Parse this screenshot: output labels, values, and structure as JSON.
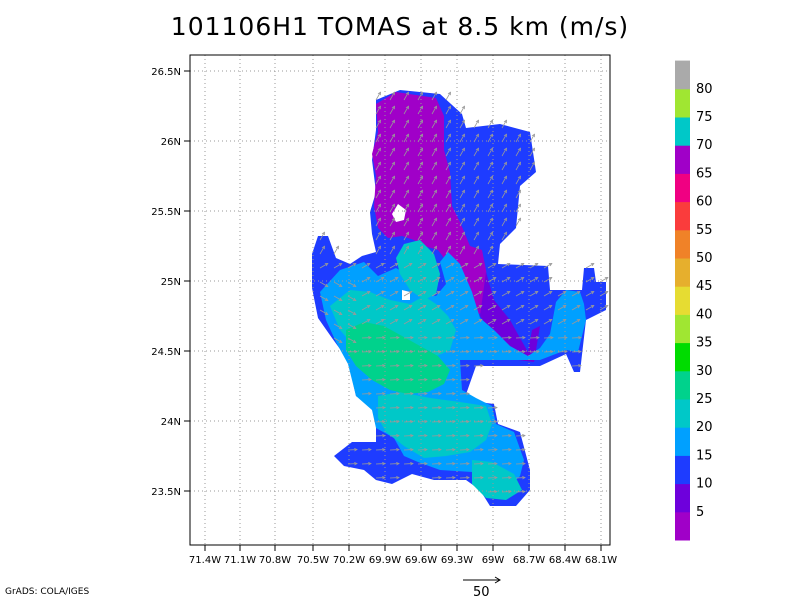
{
  "title": "101106H1 TOMAS at 8.5 km (m/s)",
  "credit": "GrADS: COLA/IGES",
  "map": {
    "lat_labels": [
      "26.5N",
      "26N",
      "25.5N",
      "25N",
      "24.5N",
      "24N",
      "23.5N"
    ],
    "lon_labels": [
      "71.4W",
      "71.1W",
      "70.8W",
      "70.5W",
      "70.2W",
      "69.9W",
      "69.6W",
      "69.3W",
      "69W",
      "68.7W",
      "68.4W",
      "68.1W"
    ],
    "lat_range": [
      23.1,
      26.6
    ],
    "lon_range": [
      -71.5,
      -68.1
    ]
  },
  "colorbar": {
    "labels": [
      "5",
      "10",
      "15",
      "20",
      "25",
      "30",
      "35",
      "40",
      "45",
      "50",
      "55",
      "60",
      "65",
      "70",
      "75",
      "80"
    ],
    "colors": [
      "#a000c8",
      "#6e00dc",
      "#1e3cff",
      "#00a0ff",
      "#00c8c8",
      "#00d28c",
      "#00dc00",
      "#a0e632",
      "#e6dc32",
      "#e6af2d",
      "#f08228",
      "#fa3c3c",
      "#f00082",
      "#a000c8",
      "#00c8c8",
      "#a0e632",
      "#aaaaaa"
    ]
  },
  "wind_field": {
    "colors": {
      "blue": "#1e3cff",
      "purple": "#a000c8",
      "violet": "#6e00dc",
      "lightblue": "#00a0ff",
      "teal": "#00c8c8",
      "green": "#00d28c"
    }
  },
  "vector_scale": {
    "label": "50"
  }
}
